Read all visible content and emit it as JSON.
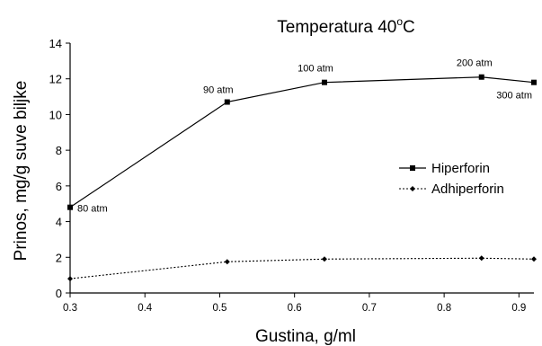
{
  "chart_data": {
    "type": "line",
    "title_main": "Temperatura 40",
    "title_degree": "o",
    "title_unit": "C",
    "xlabel": "Gustina, g/ml",
    "ylabel": "Prinos, mg/g suve biljke",
    "xlim": [
      0.3,
      0.92
    ],
    "ylim": [
      0,
      14
    ],
    "xticks": [
      "0.3",
      "0.4",
      "0.5",
      "0.6",
      "0.7",
      "0.8",
      "0.9"
    ],
    "yticks": [
      "0",
      "2",
      "4",
      "6",
      "8",
      "10",
      "12",
      "14"
    ],
    "grid": false,
    "legend_position": "right",
    "series": [
      {
        "name": "Hiperforin",
        "style": "solid",
        "marker": "square",
        "color": "#000000",
        "x": [
          0.3,
          0.51,
          0.64,
          0.85,
          0.92
        ],
        "y": [
          4.8,
          10.7,
          11.8,
          12.1,
          11.8
        ],
        "point_labels": [
          "80 atm",
          "90 atm",
          "100 atm",
          "200 atm",
          "300 atm"
        ]
      },
      {
        "name": "Adhiperforin",
        "style": "dotted",
        "marker": "diamond",
        "color": "#000000",
        "x": [
          0.3,
          0.51,
          0.64,
          0.85,
          0.92
        ],
        "y": [
          0.8,
          1.75,
          1.9,
          1.95,
          1.9
        ]
      }
    ]
  }
}
